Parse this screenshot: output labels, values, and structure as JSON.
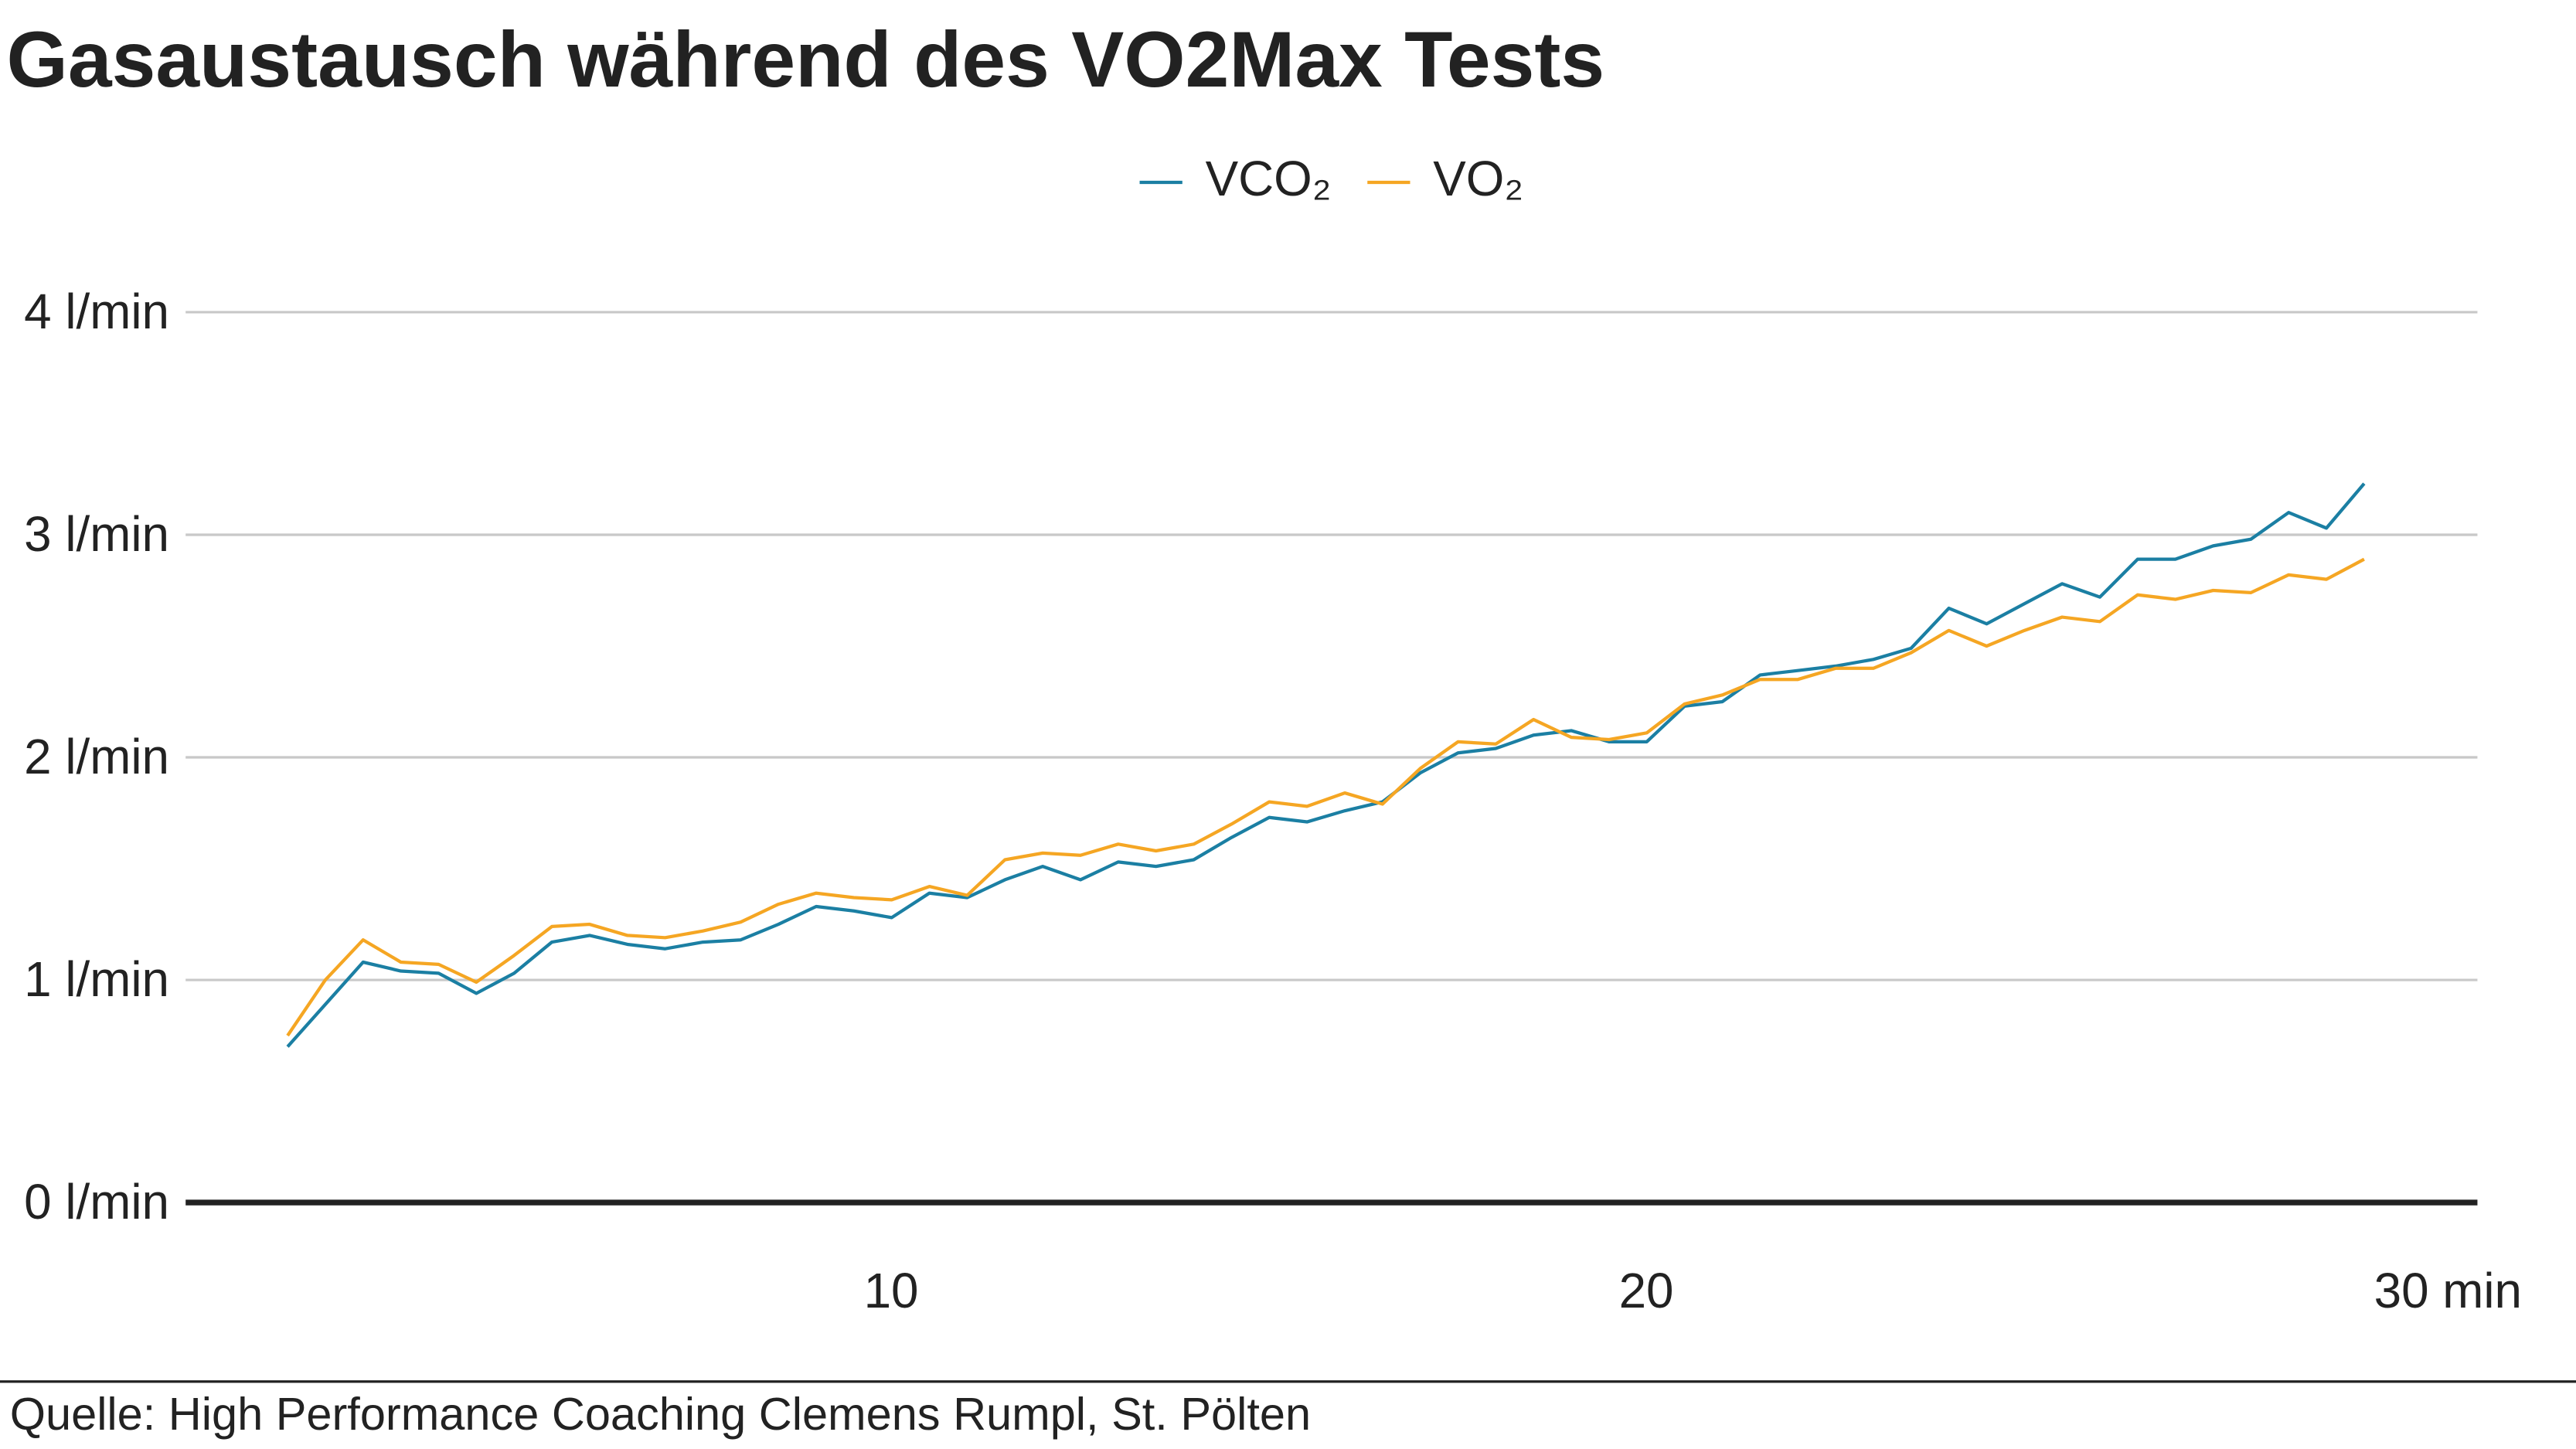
{
  "chart_data": {
    "type": "line",
    "title": "Gasaustausch während des VO2Max Tests",
    "source": "Quelle: High Performance Coaching Clemens Rumpl, St. Pölten",
    "x": [
      2,
      2.5,
      3,
      3.5,
      4,
      4.5,
      5,
      5.5,
      6,
      6.5,
      7,
      7.5,
      8,
      8.5,
      9,
      9.5,
      10,
      10.5,
      11,
      11.5,
      12,
      12.5,
      13,
      13.5,
      14,
      14.5,
      15,
      15.5,
      16,
      16.5,
      17,
      17.5,
      18,
      18.5,
      19,
      19.5,
      20,
      20.5,
      21,
      21.5,
      22,
      22.5,
      23,
      23.5,
      24,
      24.5,
      25,
      25.5,
      26,
      26.5,
      27,
      27.5,
      28,
      28.5,
      29,
      29.5
    ],
    "series": [
      {
        "name": "VCO₂",
        "color": "#1b7fa3",
        "values": [
          0.7,
          0.89,
          1.08,
          1.04,
          1.03,
          0.94,
          1.03,
          1.17,
          1.2,
          1.16,
          1.14,
          1.17,
          1.18,
          1.25,
          1.33,
          1.31,
          1.28,
          1.39,
          1.37,
          1.45,
          1.51,
          1.45,
          1.53,
          1.51,
          1.54,
          1.64,
          1.73,
          1.71,
          1.76,
          1.8,
          1.93,
          2.02,
          2.04,
          2.1,
          2.12,
          2.07,
          2.07,
          2.23,
          2.25,
          2.37,
          2.39,
          2.41,
          2.44,
          2.49,
          2.67,
          2.6,
          2.69,
          2.78,
          2.72,
          2.89,
          2.89,
          2.95,
          2.98,
          3.1,
          3.03,
          3.23
        ]
      },
      {
        "name": "VO₂",
        "color": "#f5a623",
        "values": [
          0.75,
          1.0,
          1.18,
          1.08,
          1.07,
          0.99,
          1.11,
          1.24,
          1.25,
          1.2,
          1.19,
          1.22,
          1.26,
          1.34,
          1.39,
          1.37,
          1.36,
          1.42,
          1.38,
          1.54,
          1.57,
          1.56,
          1.61,
          1.58,
          1.61,
          1.7,
          1.8,
          1.78,
          1.84,
          1.79,
          1.95,
          2.07,
          2.06,
          2.17,
          2.09,
          2.08,
          2.11,
          2.24,
          2.28,
          2.35,
          2.35,
          2.4,
          2.4,
          2.47,
          2.57,
          2.5,
          2.57,
          2.63,
          2.61,
          2.73,
          2.71,
          2.75,
          2.74,
          2.82,
          2.8,
          2.89
        ]
      }
    ],
    "xlim": [
      0.65,
      31
    ],
    "xticks": [
      10,
      20,
      {
        "value": 30,
        "label": "30 min"
      }
    ],
    "ylim": [
      0,
      4
    ],
    "yticks": [
      {
        "value": 0,
        "label": "0 l/min"
      },
      {
        "value": 1,
        "label": "1 l/min"
      },
      {
        "value": 2,
        "label": "2 l/min"
      },
      {
        "value": 3,
        "label": "3 l/min"
      },
      {
        "value": 4,
        "label": "4 l/min"
      }
    ],
    "grid": true,
    "legend": "top"
  }
}
